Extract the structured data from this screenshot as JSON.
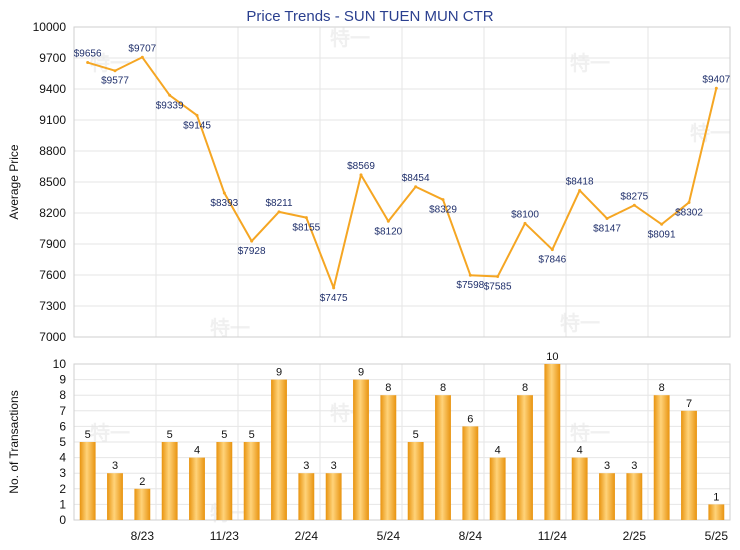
{
  "chart_data": [
    {
      "type": "line",
      "title": "Price Trends - SUN TUEN MUN CTR",
      "ylabel": "Average Price",
      "ylim": [
        7000,
        10000
      ],
      "yticks": [
        7000,
        7300,
        7600,
        7900,
        8200,
        8500,
        8800,
        9100,
        9400,
        9700,
        10000
      ],
      "line_color": "#f5a623",
      "values": [
        9656,
        9577,
        9707,
        9339,
        9145,
        8393,
        7928,
        8211,
        8155,
        7475,
        8569,
        8120,
        8454,
        8329,
        7598,
        7585,
        8100,
        7846,
        8418,
        8147,
        8275,
        8091,
        8302,
        9407
      ],
      "data_labels": [
        "$9656",
        "$9577",
        "$9707",
        "$9339",
        "$9145",
        "$8393",
        "$7928",
        "$8211",
        "$8155",
        "$7475",
        "$8569",
        "$8120",
        "$8454",
        "$8329",
        "$7598",
        "$7585",
        "$8100",
        "$7846",
        "$8418",
        "$8147",
        "$8275",
        "$8091",
        "$8302",
        "$9407"
      ],
      "grid": true
    },
    {
      "type": "bar",
      "ylabel": "No. of Transactions",
      "ylim": [
        0,
        10
      ],
      "yticks": [
        0,
        1,
        2,
        3,
        4,
        5,
        6,
        7,
        8,
        9,
        10
      ],
      "bar_color": "#f5a623",
      "values": [
        5,
        3,
        2,
        5,
        4,
        5,
        5,
        9,
        3,
        3,
        9,
        8,
        5,
        8,
        6,
        4,
        8,
        10,
        4,
        3,
        3,
        8,
        7,
        1
      ],
      "x_tick_labels": [
        "8/23",
        "11/23",
        "2/24",
        "5/24",
        "8/24",
        "11/24",
        "2/25",
        "5/25"
      ],
      "x_tick_index": [
        2,
        5,
        8,
        11,
        14,
        17,
        20,
        23
      ],
      "grid": true
    }
  ],
  "watermark": "特一"
}
